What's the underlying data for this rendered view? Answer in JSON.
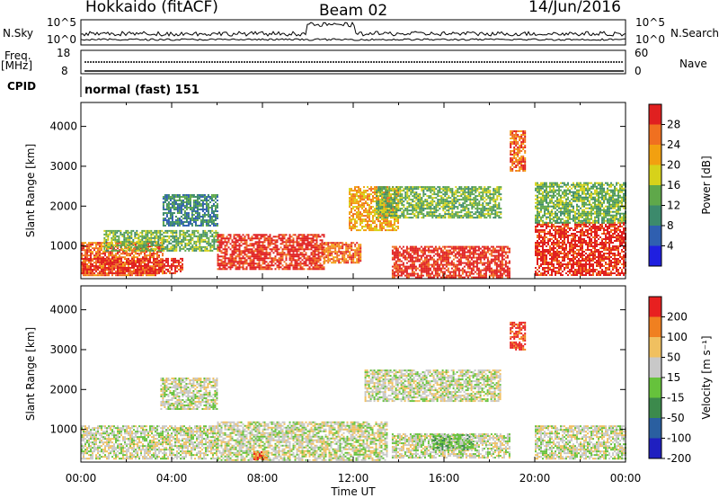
{
  "header": {
    "title": "Hokkaido (fitACF)",
    "beam": "Beam 02",
    "date": "14/Jun/2016"
  },
  "noise_panel": {
    "left_label": "N.Sky",
    "right_label": "N.Search",
    "left_ticks": [
      "10^5",
      "10^0"
    ],
    "right_ticks": [
      "10^5",
      "10^0"
    ]
  },
  "freq_panel": {
    "left_label_1": "Freq.",
    "left_label_2": "[MHz]",
    "right_label": "Nave",
    "left_ticks": [
      "18",
      "8"
    ],
    "right_ticks": [
      "60",
      "0"
    ]
  },
  "cpid_panel": {
    "label": "CPID",
    "text": "normal (fast) 151"
  },
  "chart_data": [
    {
      "type": "heatmap",
      "name": "power",
      "ylabel": "Slant Range [km]",
      "yticks": [
        1000,
        2000,
        3000,
        4000
      ],
      "ylim": [
        180,
        4600
      ],
      "xlim": [
        0,
        24
      ],
      "colorbar": {
        "label": "Power [dB]",
        "ticks": [
          "4",
          "8",
          "12",
          "16",
          "20",
          "24",
          "28"
        ],
        "colors": [
          "#1f1fe0",
          "#2f5fb0",
          "#3c8a6c",
          "#5fa84a",
          "#d7d21a",
          "#f2a010",
          "#f07020",
          "#e02020"
        ]
      },
      "regions": [
        {
          "x0": 0.0,
          "x1": 3.6,
          "y0": 250,
          "y1": 1100,
          "level": 6
        },
        {
          "x0": 0.0,
          "x1": 4.5,
          "y0": 300,
          "y1": 700,
          "level": 7
        },
        {
          "x0": 1.0,
          "x1": 6.0,
          "y0": 900,
          "y1": 1400,
          "level": 3
        },
        {
          "x0": 3.6,
          "x1": 6.0,
          "y0": 1500,
          "y1": 2300,
          "level": 2
        },
        {
          "x0": 6.0,
          "x1": 10.7,
          "y0": 400,
          "y1": 1300,
          "level": 7
        },
        {
          "x0": 10.7,
          "x1": 12.3,
          "y0": 600,
          "y1": 1100,
          "level": 6
        },
        {
          "x0": 11.8,
          "x1": 14.0,
          "y0": 1400,
          "y1": 2500,
          "level": 5
        },
        {
          "x0": 13.0,
          "x1": 18.5,
          "y0": 1700,
          "y1": 2500,
          "level": 3
        },
        {
          "x0": 13.7,
          "x1": 18.9,
          "y0": 200,
          "y1": 1000,
          "level": 7
        },
        {
          "x0": 18.9,
          "x1": 19.6,
          "y0": 2900,
          "y1": 3900,
          "level": 6
        },
        {
          "x0": 20.0,
          "x1": 24.0,
          "y0": 250,
          "y1": 1600,
          "level": 7
        },
        {
          "x0": 20.0,
          "x1": 24.0,
          "y0": 1600,
          "y1": 2600,
          "level": 3
        }
      ]
    },
    {
      "type": "heatmap",
      "name": "velocity",
      "ylabel": "Slant Range [km]",
      "xlabel": "Time UT",
      "xticks": [
        "00:00",
        "04:00",
        "08:00",
        "12:00",
        "16:00",
        "20:00",
        "00:00"
      ],
      "yticks": [
        1000,
        2000,
        3000,
        4000
      ],
      "ylim": [
        180,
        4600
      ],
      "xlim": [
        0,
        24
      ],
      "colorbar": {
        "label": "Velocity [m s⁻¹]",
        "ticks": [
          "200",
          "100",
          "50",
          "15",
          "-15",
          "-50",
          "-100",
          "-200"
        ],
        "colors": [
          "#1f1fc0",
          "#2a5fa0",
          "#3c8a4c",
          "#66c23c",
          "#c8c8c8",
          "#f0c060",
          "#f08020",
          "#e82020"
        ]
      },
      "regions": [
        {
          "x0": 0.0,
          "x1": 6.0,
          "y0": 250,
          "y1": 1100,
          "level": 4
        },
        {
          "x0": 3.5,
          "x1": 6.0,
          "y0": 1500,
          "y1": 2300,
          "level": 4
        },
        {
          "x0": 6.0,
          "x1": 13.5,
          "y0": 250,
          "y1": 1200,
          "level": 4
        },
        {
          "x0": 7.6,
          "x1": 8.2,
          "y0": 250,
          "y1": 450,
          "level": 6
        },
        {
          "x0": 12.5,
          "x1": 18.5,
          "y0": 1700,
          "y1": 2500,
          "level": 4
        },
        {
          "x0": 13.7,
          "x1": 18.9,
          "y0": 300,
          "y1": 900,
          "level": 4
        },
        {
          "x0": 15.5,
          "x1": 17.3,
          "y0": 480,
          "y1": 880,
          "level": 3
        },
        {
          "x0": 18.9,
          "x1": 19.6,
          "y0": 3000,
          "y1": 3700,
          "level": 7
        },
        {
          "x0": 20.0,
          "x1": 24.0,
          "y0": 250,
          "y1": 1100,
          "level": 4
        }
      ]
    }
  ]
}
